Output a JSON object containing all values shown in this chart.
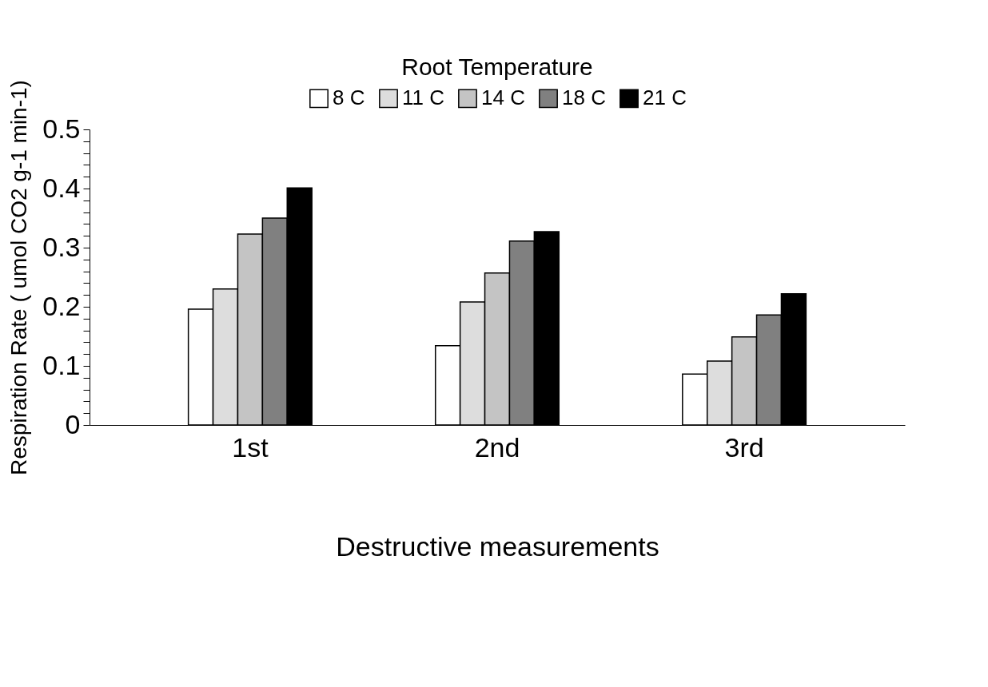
{
  "chart_data": {
    "type": "bar",
    "xlabel": "Destructive measurements",
    "ylabel": "Respiration Rate ( umol CO2 g-1 min-1)",
    "legend_title": "Root Temperature",
    "legend": "top",
    "categories": [
      "1st",
      "2nd",
      "3rd"
    ],
    "series": [
      {
        "name": "8 C",
        "color": "#ffffff",
        "values": [
          0.196,
          0.134,
          0.086
        ]
      },
      {
        "name": "11 C",
        "color": "#dddddd",
        "values": [
          0.23,
          0.208,
          0.108
        ]
      },
      {
        "name": "14 C",
        "color": "#c4c4c4",
        "values": [
          0.323,
          0.257,
          0.149
        ]
      },
      {
        "name": "18 C",
        "color": "#808080",
        "values": [
          0.35,
          0.311,
          0.186
        ]
      },
      {
        "name": "21 C",
        "color": "#000000",
        "values": [
          0.401,
          0.327,
          0.222
        ]
      }
    ],
    "ylim": [
      0,
      0.5
    ],
    "yticks": [
      0,
      {
        "value": 0.02,
        "label": null
      },
      {
        "value": 0.04,
        "label": null
      },
      {
        "value": 0.06,
        "label": null
      },
      {
        "value": 0.08,
        "label": null
      },
      0.1,
      {
        "value": 0.12,
        "label": null
      },
      {
        "value": 0.14,
        "label": null
      },
      {
        "value": 0.16,
        "label": null
      },
      {
        "value": 0.18,
        "label": null
      },
      0.2,
      {
        "value": 0.22,
        "label": null
      },
      {
        "value": 0.24,
        "label": null
      },
      {
        "value": 0.26,
        "label": null
      },
      {
        "value": 0.28,
        "label": null
      },
      0.3,
      {
        "value": 0.32,
        "label": null
      },
      {
        "value": 0.34,
        "label": null
      },
      {
        "value": 0.36,
        "label": null
      },
      {
        "value": 0.38,
        "label": null
      },
      0.4,
      {
        "value": 0.42,
        "label": null
      },
      {
        "value": 0.44,
        "label": null
      },
      {
        "value": 0.46,
        "label": null
      },
      {
        "value": 0.48,
        "label": null
      },
      0.5
    ],
    "grid": false
  }
}
